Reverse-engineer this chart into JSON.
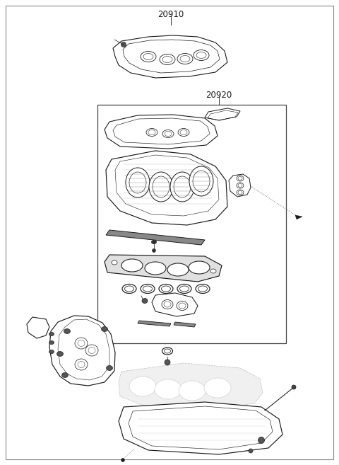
{
  "bg_color": "#ffffff",
  "line_color": "#1a1a1a",
  "border_color": "#aaaaaa",
  "label_20910": "20910",
  "label_20920": "20920",
  "label_fontsize": 8.5,
  "fig_width": 4.8,
  "fig_height": 6.57,
  "dpi": 100
}
